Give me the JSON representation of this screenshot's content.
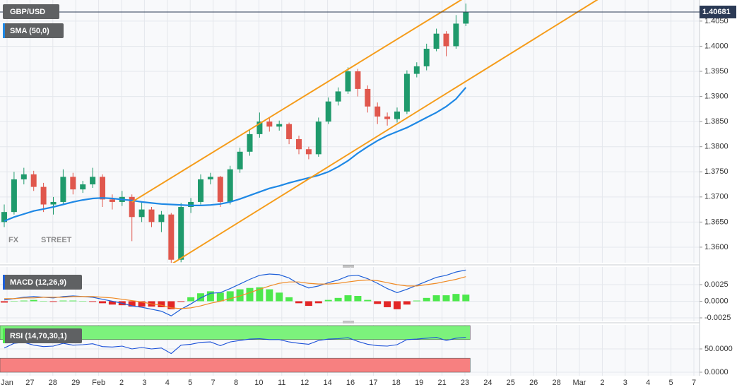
{
  "chart_data": [
    {
      "type": "candlestick",
      "title": "GBP/USD",
      "date_labels": [
        "Jan",
        "27",
        "28",
        "29",
        "Feb",
        "2",
        "3",
        "4",
        "5",
        "7",
        "8",
        "10",
        "11",
        "12",
        "14",
        "16",
        "17",
        "18",
        "19",
        "21",
        "23",
        "24",
        "25",
        "26",
        "28",
        "Mar",
        "2",
        "3",
        "4",
        "5",
        "7"
      ],
      "open": [
        1.365,
        1.367,
        1.3735,
        1.3745,
        1.372,
        1.3685,
        1.369,
        1.374,
        1.3715,
        1.3725,
        1.374,
        1.3695,
        1.369,
        1.37,
        1.366,
        1.3675,
        1.365,
        1.3665,
        1.3575,
        1.368,
        1.369,
        1.3735,
        1.374,
        1.369,
        1.3755,
        1.379,
        1.3825,
        1.385,
        1.384,
        1.3845,
        1.3815,
        1.3795,
        1.3785,
        1.385,
        1.389,
        1.391,
        1.395,
        1.3915,
        1.388,
        1.386,
        1.3855,
        1.387,
        1.3945,
        1.396,
        1.3995,
        1.4025,
        1.4,
        1.4045
      ],
      "high": [
        1.3685,
        1.375,
        1.3758,
        1.3752,
        1.3728,
        1.37,
        1.3755,
        1.3748,
        1.3732,
        1.3758,
        1.3745,
        1.3705,
        1.3712,
        1.3705,
        1.369,
        1.368,
        1.3672,
        1.3668,
        1.3688,
        1.3698,
        1.3745,
        1.3748,
        1.3742,
        1.3762,
        1.3798,
        1.3835,
        1.3868,
        1.3858,
        1.3852,
        1.3848,
        1.3822,
        1.38,
        1.3858,
        1.3898,
        1.3918,
        1.3958,
        1.3955,
        1.3922,
        1.3888,
        1.3868,
        1.3878,
        1.3952,
        1.3968,
        1.4005,
        1.4035,
        1.403,
        1.4062,
        1.4085
      ],
      "low": [
        1.364,
        1.3665,
        1.3725,
        1.3712,
        1.367,
        1.3665,
        1.3685,
        1.3705,
        1.3708,
        1.3718,
        1.368,
        1.3675,
        1.3682,
        1.3612,
        1.365,
        1.364,
        1.363,
        1.3566,
        1.357,
        1.3668,
        1.3685,
        1.3725,
        1.368,
        1.3685,
        1.3748,
        1.3782,
        1.3818,
        1.383,
        1.3832,
        1.3805,
        1.3785,
        1.3775,
        1.378,
        1.3845,
        1.3882,
        1.3905,
        1.39,
        1.3868,
        1.3845,
        1.3842,
        1.3848,
        1.3865,
        1.3938,
        1.3952,
        1.399,
        1.398,
        1.3995,
        1.404
      ],
      "close": [
        1.367,
        1.3735,
        1.3745,
        1.372,
        1.3685,
        1.369,
        1.374,
        1.3715,
        1.3725,
        1.374,
        1.3695,
        1.369,
        1.37,
        1.366,
        1.3675,
        1.365,
        1.3665,
        1.3575,
        1.368,
        1.369,
        1.3735,
        1.374,
        1.369,
        1.3755,
        1.379,
        1.3825,
        1.385,
        1.384,
        1.3845,
        1.3815,
        1.3795,
        1.3785,
        1.385,
        1.389,
        1.391,
        1.395,
        1.3915,
        1.388,
        1.386,
        1.3855,
        1.387,
        1.3945,
        1.396,
        1.3995,
        1.4025,
        1.4,
        1.4045,
        1.4068
      ],
      "up_color": "#1f9a6c",
      "down_color": "#e0574d",
      "series": [
        {
          "name": "SMA (50,0)",
          "color": "#1e88e5",
          "values": [
            1.3652,
            1.366,
            1.3666,
            1.3672,
            1.3676,
            1.368,
            1.3685,
            1.369,
            1.3694,
            1.3697,
            1.3698,
            1.3697,
            1.3695,
            1.3693,
            1.369,
            1.3688,
            1.3686,
            1.3685,
            1.3684,
            1.3683,
            1.3683,
            1.3684,
            1.3686,
            1.369,
            1.3696,
            1.3703,
            1.371,
            1.3717,
            1.3722,
            1.3728,
            1.3733,
            1.3738,
            1.3743,
            1.375,
            1.376,
            1.3772,
            1.3787,
            1.38,
            1.3812,
            1.3822,
            1.383,
            1.3838,
            1.3848,
            1.3858,
            1.3868,
            1.388,
            1.3895,
            1.3918
          ]
        }
      ],
      "trendlines": [
        {
          "color": "#f59c1a",
          "x": [
            13,
            47
          ],
          "y": [
            1.369,
            1.4098
          ]
        },
        {
          "color": "#f59c1a",
          "x": [
            17,
            61
          ],
          "y": [
            1.3566,
            1.41
          ]
        }
      ],
      "last_price": 1.40681,
      "watermark": [
        "FX",
        "STREET"
      ],
      "ylim": [
        1.3569,
        1.4092
      ],
      "yticks": [
        {
          "value": 1.36,
          "label": "1.3600"
        },
        {
          "value": 1.365,
          "label": "1.3650"
        },
        {
          "value": 1.37,
          "label": "1.3700"
        },
        {
          "value": 1.375,
          "label": "1.3750"
        },
        {
          "value": 1.38,
          "label": "1.3800"
        },
        {
          "value": 1.385,
          "label": "1.3850"
        },
        {
          "value": 1.39,
          "label": "1.3900"
        },
        {
          "value": 1.395,
          "label": "1.3950"
        },
        {
          "value": 1.4,
          "label": "1.4000"
        },
        {
          "value": 1.405,
          "label": "1.4050"
        }
      ],
      "grid": true
    },
    {
      "type": "macd",
      "title": "MACD (12,26,9)",
      "lines": [
        {
          "color": "#1e5fd8",
          "values": [
            0.0002,
            0.0004,
            0.0006,
            0.0007,
            0.0006,
            0.0005,
            0.0007,
            0.0008,
            0.0007,
            0.0006,
            0.0003,
            0.0,
            -0.0003,
            -0.0007,
            -0.0009,
            -0.0012,
            -0.0015,
            -0.0022,
            -0.0012,
            -0.0004,
            0.0005,
            0.0012,
            0.0013,
            0.0019,
            0.0026,
            0.0033,
            0.0039,
            0.0041,
            0.004,
            0.0035,
            0.0026,
            0.002,
            0.0023,
            0.0028,
            0.0032,
            0.0038,
            0.0039,
            0.0034,
            0.0027,
            0.0019,
            0.0013,
            0.0018,
            0.0024,
            0.003,
            0.0036,
            0.0039,
            0.0044,
            0.0047
          ]
        },
        {
          "color": "#f08a24",
          "values": [
            0.0004,
            0.0004,
            0.0005,
            0.0005,
            0.0006,
            0.0006,
            0.0006,
            0.0007,
            0.0007,
            0.0007,
            0.0006,
            0.0005,
            0.0003,
            0.0001,
            -0.0001,
            -0.0004,
            -0.0006,
            -0.001,
            -0.0011,
            -0.001,
            -0.0007,
            -0.0003,
            0.0,
            0.0004,
            0.0008,
            0.0013,
            0.0018,
            0.0023,
            0.0027,
            0.0029,
            0.0029,
            0.0027,
            0.0026,
            0.0026,
            0.0027,
            0.0029,
            0.0031,
            0.0032,
            0.0031,
            0.0028,
            0.0025,
            0.0023,
            0.0023,
            0.0025,
            0.0027,
            0.003,
            0.0033,
            0.0037
          ]
        }
      ],
      "histogram": {
        "up_color": "#4de84d",
        "down_color": "#e32626",
        "values": [
          -0.0002,
          0.0,
          0.0001,
          0.0002,
          0.0,
          -0.0001,
          0.0001,
          0.0001,
          0.0,
          -0.0001,
          -0.0003,
          -0.0005,
          -0.0006,
          -0.0008,
          -0.0008,
          -0.0008,
          -0.0009,
          -0.0012,
          -0.0001,
          0.0006,
          0.0012,
          0.0015,
          0.0013,
          0.0015,
          0.0018,
          0.002,
          0.0021,
          0.0018,
          0.0013,
          0.0006,
          -0.0003,
          -0.0007,
          -0.0003,
          0.0002,
          0.0005,
          0.0009,
          0.0008,
          0.0002,
          -0.0004,
          -0.0009,
          -0.0012,
          -0.0005,
          0.0001,
          0.0005,
          0.0009,
          0.0009,
          0.0011,
          0.001
        ]
      },
      "ylim": [
        -0.00303,
        0.00516
      ],
      "yticks": [
        {
          "value": -0.0025,
          "label": "-0.0025"
        },
        {
          "value": 0,
          "label": "0.0000"
        },
        {
          "value": 0.0025,
          "label": "0.0025"
        }
      ],
      "grid": true
    },
    {
      "type": "rsi",
      "title": "RSI (14,70,30,1)",
      "line": {
        "color": "#1a4fd8",
        "values": [
          52,
          62,
          64,
          58,
          55,
          56,
          62,
          58,
          59,
          61,
          55,
          54,
          56,
          50,
          53,
          50,
          52,
          40,
          58,
          60,
          64,
          65,
          57,
          65,
          68,
          71,
          72,
          70,
          70,
          65,
          62,
          60,
          68,
          71,
          72,
          74,
          66,
          60,
          57,
          56,
          59,
          70,
          71,
          73,
          75,
          68,
          73,
          75
        ]
      },
      "bands": [
        {
          "from": 70,
          "to": 100,
          "color": "#7cf27c"
        },
        {
          "from": 0,
          "to": 30,
          "color": "#f78080"
        }
      ],
      "ylim": [
        -7.6,
        101.5
      ],
      "yticks": [
        {
          "value": 0,
          "label": "0.0000"
        },
        {
          "value": 50,
          "label": "50.0000"
        }
      ],
      "grid": true
    }
  ]
}
